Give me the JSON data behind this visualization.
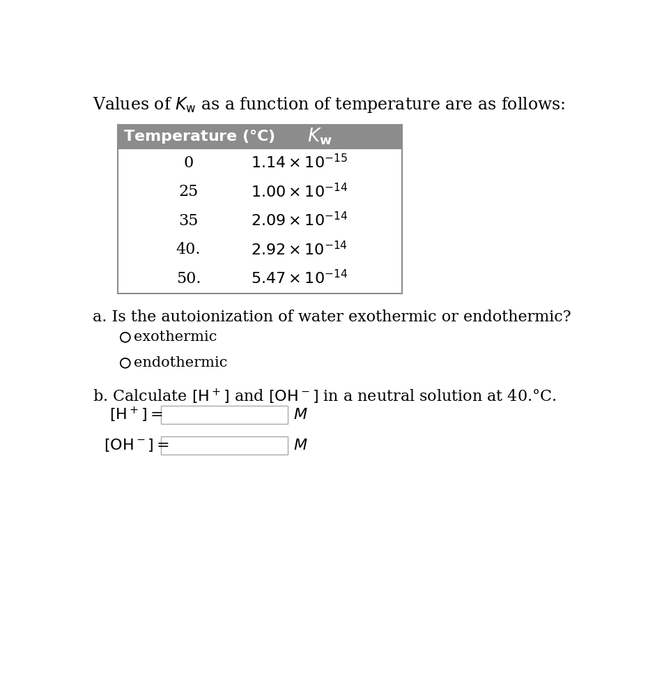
{
  "title_text": "Values of $K_{\\mathrm{w}}$ as a function of temperature are as follows:",
  "table_rows": [
    [
      "0",
      "$1.14 \\times 10^{-15}$"
    ],
    [
      "25",
      "$1.00 \\times 10^{-14}$"
    ],
    [
      "35",
      "$2.09 \\times 10^{-14}$"
    ],
    [
      "40.",
      "$2.92 \\times 10^{-14}$"
    ],
    [
      "50.",
      "$5.47 \\times 10^{-14}$"
    ]
  ],
  "question_a": "a. Is the autoionization of water exothermic or endothermic?",
  "option_exothermic": "exothermic",
  "option_endothermic": "endothermic",
  "question_b": "b. Calculate $\\left[\\mathrm{H}^+\\right]$ and $\\left[\\mathrm{OH}^-\\right]$ in a neutral solution at 40.°C.",
  "label_h": "$\\left[\\mathrm{H}^+\\right] =$",
  "label_oh": "$\\left[\\mathrm{OH}^-\\right] =$",
  "unit_m": "$M$",
  "header_bg": "#8c8c8c",
  "header_text_color": "#ffffff",
  "bg_color": "#ffffff",
  "text_color": "#000000",
  "table_border_color": "#8c8c8c",
  "input_box_color": "#ffffff",
  "input_box_border": "#aaaaaa",
  "font_size_title": 17,
  "font_size_table_header": 16,
  "font_size_table_body": 16,
  "font_size_question": 16,
  "font_size_option": 15,
  "font_size_label": 16
}
